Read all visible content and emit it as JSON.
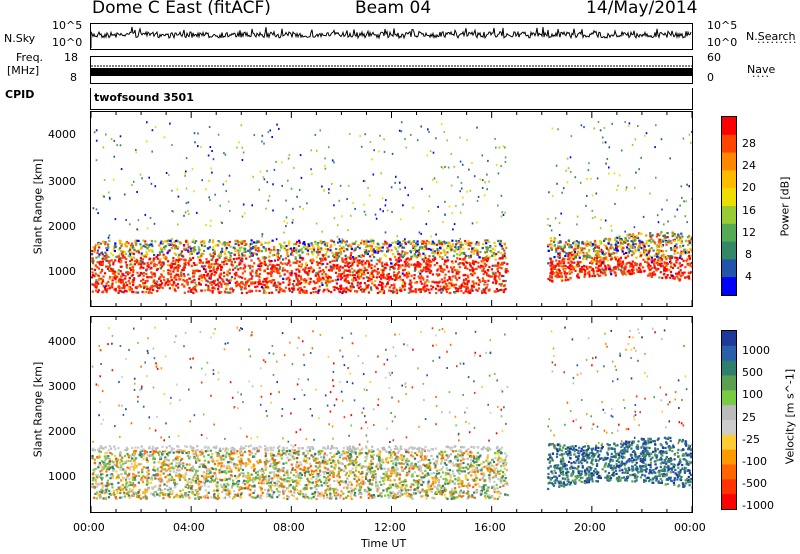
{
  "header": {
    "station": "Dome C East (fitACF)",
    "beam": "Beam 04",
    "date": "14/May/2014"
  },
  "nsky": {
    "label": "N.Sky",
    "tick_top": "10^5",
    "tick_bottom": "10^0",
    "right_label": "N.Search",
    "right_tick_top": "10^5",
    "right_tick_bottom": "10^0"
  },
  "freq": {
    "label_line1": "Freq.",
    "label_line2": "[MHz]",
    "tick_top": "18",
    "tick_bottom": "8",
    "right_label": "Nave",
    "right_tick_top": "60",
    "right_tick_bottom": "0"
  },
  "cpid": {
    "label": "CPID",
    "value": "twofsound 3501"
  },
  "power_panel": {
    "ylabel": "Slant Range [km]",
    "yticks": [
      "4000",
      "3000",
      "2000",
      "1000"
    ],
    "colorbar_label": "Power [dB]",
    "colorbar_ticks": [
      "28",
      "24",
      "20",
      "16",
      "12",
      "8",
      "4"
    ],
    "colorbar_colors": [
      "#ff0000",
      "#ff4400",
      "#ff8800",
      "#ffbb00",
      "#eedd00",
      "#99cc33",
      "#55aa55",
      "#338866",
      "#2255aa",
      "#0000ff"
    ]
  },
  "velocity_panel": {
    "ylabel": "Slant Range [km]",
    "yticks": [
      "4000",
      "3000",
      "2000",
      "1000"
    ],
    "colorbar_label": "Velocity [m s^-1]",
    "colorbar_ticks": [
      "1000",
      "500",
      "100",
      "25",
      "-25",
      "-100",
      "-500",
      "-1000"
    ],
    "colorbar_colors": [
      "#1e3a99",
      "#2a5faa",
      "#2f7f6f",
      "#5aa050",
      "#77cc44",
      "#bbbbbb",
      "#cccccc",
      "#ffcc33",
      "#ff9900",
      "#ff6600",
      "#ff3300",
      "#ff0000"
    ]
  },
  "xaxis": {
    "label": "Time UT",
    "ticks": [
      "00:00",
      "04:00",
      "08:00",
      "12:00",
      "16:00",
      "20:00",
      "00:00"
    ]
  }
}
